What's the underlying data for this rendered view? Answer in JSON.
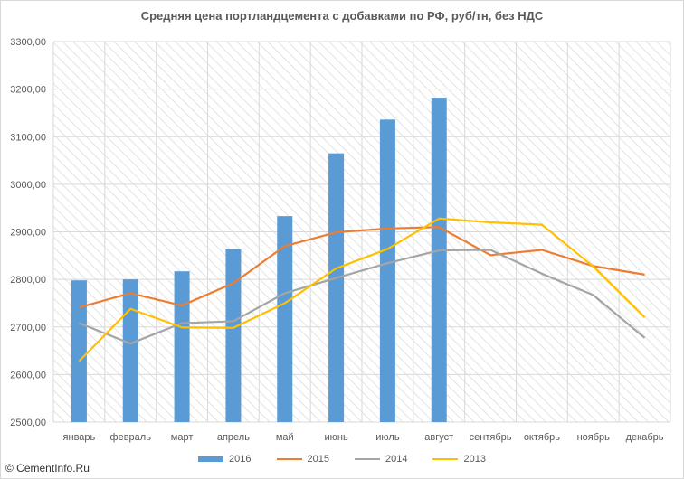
{
  "chart_data": {
    "type": "bar+line",
    "title": "Средняя цена портландцемента с добавками по РФ, руб/тн, без НДС",
    "categories": [
      "январь",
      "февраль",
      "март",
      "апрель",
      "май",
      "июнь",
      "июль",
      "август",
      "сентябрь",
      "октябрь",
      "ноябрь",
      "декабрь"
    ],
    "ylim": [
      2500,
      3300
    ],
    "yticks": [
      "2500,00",
      "2600,00",
      "2700,00",
      "2800,00",
      "2900,00",
      "3000,00",
      "3100,00",
      "3200,00",
      "3300,00"
    ],
    "series": [
      {
        "name": "2016",
        "type": "bar",
        "color": "#5b9bd5",
        "values": [
          2798,
          2800,
          2817,
          2863,
          2933,
          3065,
          3136,
          3182,
          null,
          null,
          null,
          null
        ]
      },
      {
        "name": "2015",
        "type": "line",
        "color": "#ed7d31",
        "values": [
          2741,
          2771,
          2745,
          2792,
          2870,
          2899,
          2907,
          2910,
          2851,
          2862,
          2828,
          2810
        ]
      },
      {
        "name": "2014",
        "type": "line",
        "color": "#a5a5a5",
        "values": [
          2708,
          2665,
          2708,
          2712,
          2771,
          2803,
          2834,
          2861,
          2862,
          2812,
          2767,
          2677
        ]
      },
      {
        "name": "2013",
        "type": "line",
        "color": "#ffc000",
        "values": [
          2628,
          2738,
          2699,
          2698,
          2750,
          2823,
          2864,
          2928,
          2920,
          2915,
          2827,
          2720
        ]
      }
    ],
    "grid": true,
    "legend_position": "bottom"
  },
  "watermark": "© CementInfo.Ru"
}
